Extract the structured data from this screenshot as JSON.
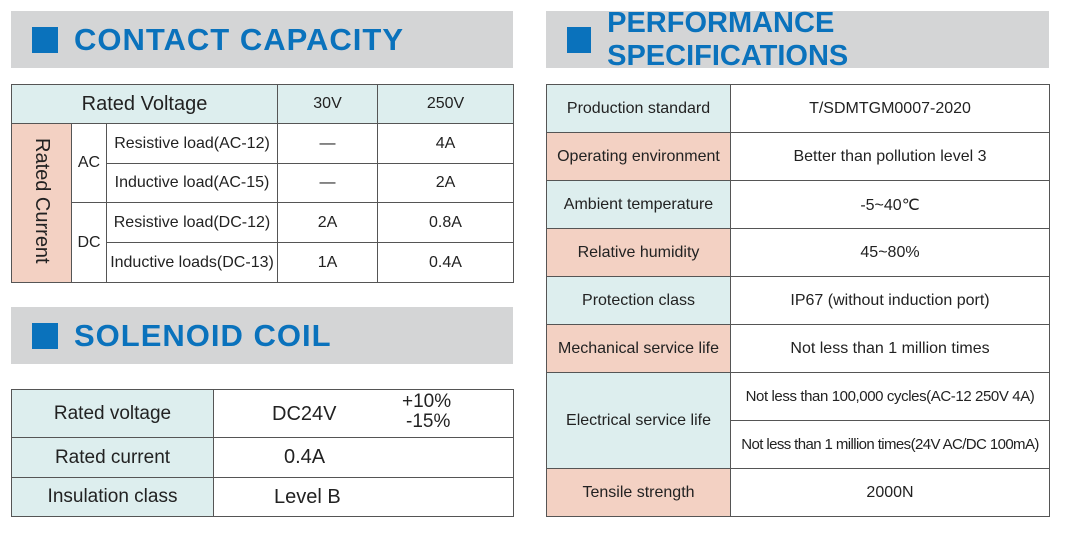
{
  "contact": {
    "title": "CONTACT CAPACITY",
    "header": [
      "Rated Voltage",
      "30V",
      "250V"
    ],
    "rated_current": "Rated Current",
    "groups": [
      {
        "type": "AC",
        "rows": [
          {
            "load": "Resistive load(AC-12)",
            "v30": "—",
            "v250": "4A"
          },
          {
            "load": "Inductive load(AC-15)",
            "v30": "—",
            "v250": "2A"
          }
        ]
      },
      {
        "type": "DC",
        "rows": [
          {
            "load": "Resistive load(DC-12)",
            "v30": "2A",
            "v250": "0.8A"
          },
          {
            "load": "Inductive loads(DC-13)",
            "v30": "1A",
            "v250": "0.4A"
          }
        ]
      }
    ]
  },
  "coil": {
    "title": "SOLENOID COIL",
    "rows": [
      {
        "label": "Rated voltage",
        "value": "DC24V",
        "tol_plus": "+10%",
        "tol_minus": "-15%"
      },
      {
        "label": "Rated current",
        "value": "0.4A"
      },
      {
        "label": "Insulation class",
        "value": "Level B"
      }
    ]
  },
  "perf": {
    "title": "PERFORMANCE SPECIFICATIONS",
    "rows": [
      {
        "label": "Production standard",
        "value": "T/SDMTGM0007-2020"
      },
      {
        "label": "Operating environment",
        "value": "Better than pollution level 3"
      },
      {
        "label": "Ambient temperature",
        "value": "-5~40℃"
      },
      {
        "label": "Relative humidity",
        "value": "45~80%"
      },
      {
        "label": "Protection class",
        "value": "IP67 (without induction port)"
      },
      {
        "label": "Mechanical service life",
        "value": "Not less than 1 million times"
      },
      {
        "label": "Electrical service life",
        "values": [
          "Not less than 100,000 cycles(AC-12 250V 4A)",
          "Not less than 1 million times(24V AC/DC 100mA)"
        ]
      },
      {
        "label": "Tensile strength",
        "value": "2000N"
      }
    ]
  },
  "colors": {
    "blue": "#0a72bc",
    "band": "#d4d5d6",
    "teal": "#ddeeee",
    "salmon": "#f3d1c3"
  }
}
